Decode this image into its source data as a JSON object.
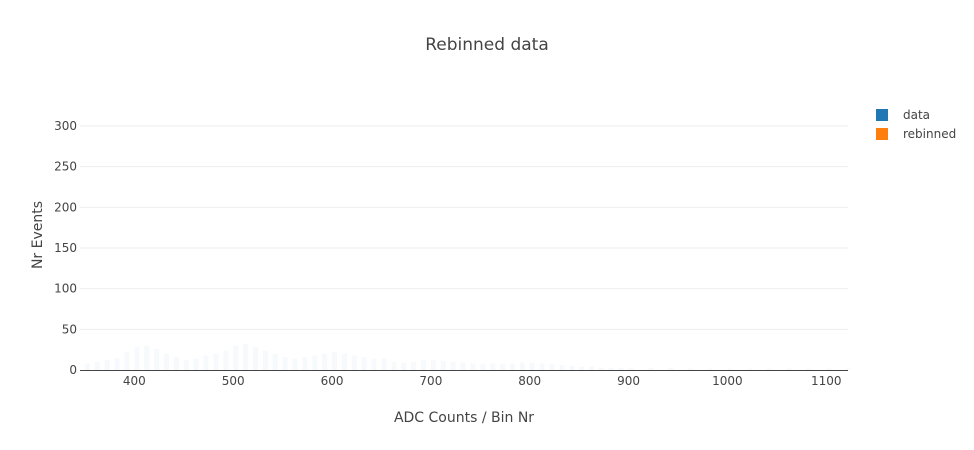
{
  "chart_data": {
    "type": "bar",
    "title": "Rebinned data",
    "xlabel": "ADC Counts / Bin Nr",
    "ylabel": "Nr Events",
    "xlim": [
      345,
      1122
    ],
    "ylim": [
      0,
      300
    ],
    "x_ticks": [
      "400",
      "500",
      "600",
      "700",
      "800",
      "900",
      "1000",
      "1100"
    ],
    "y_ticks": [
      "0",
      "50",
      "100",
      "150",
      "200",
      "250",
      "300"
    ],
    "grid": true,
    "legend_position": "top-right",
    "series": [
      {
        "name": "data",
        "color": "#1f77b4",
        "opacity": 0.04,
        "x": [
          350,
          360,
          370,
          380,
          390,
          400,
          410,
          420,
          430,
          440,
          450,
          460,
          470,
          480,
          490,
          500,
          510,
          520,
          530,
          540,
          550,
          560,
          570,
          580,
          590,
          600,
          610,
          620,
          630,
          640,
          650,
          660,
          670,
          680,
          690,
          700,
          710,
          720,
          730,
          740,
          750,
          760,
          770,
          780,
          790,
          800,
          810,
          820,
          830,
          840,
          850,
          860,
          870,
          880,
          890,
          900,
          920,
          940,
          960,
          980,
          1000,
          1020,
          1040,
          1060,
          1080,
          1100,
          1120
        ],
        "values": [
          8,
          10,
          12,
          15,
          22,
          28,
          30,
          26,
          20,
          16,
          12,
          14,
          18,
          20,
          24,
          30,
          32,
          28,
          24,
          20,
          16,
          14,
          16,
          18,
          20,
          22,
          20,
          18,
          16,
          14,
          14,
          10,
          9,
          10,
          12,
          12,
          11,
          10,
          9,
          8,
          7,
          8,
          8,
          8,
          9,
          9,
          8,
          7,
          6,
          5,
          4,
          4,
          3,
          3,
          3,
          3,
          3,
          3,
          2,
          2,
          2,
          2,
          2,
          2,
          2,
          2,
          2
        ]
      },
      {
        "name": "rebinned",
        "color": "#ff7f0e",
        "x": [],
        "values": []
      }
    ]
  }
}
